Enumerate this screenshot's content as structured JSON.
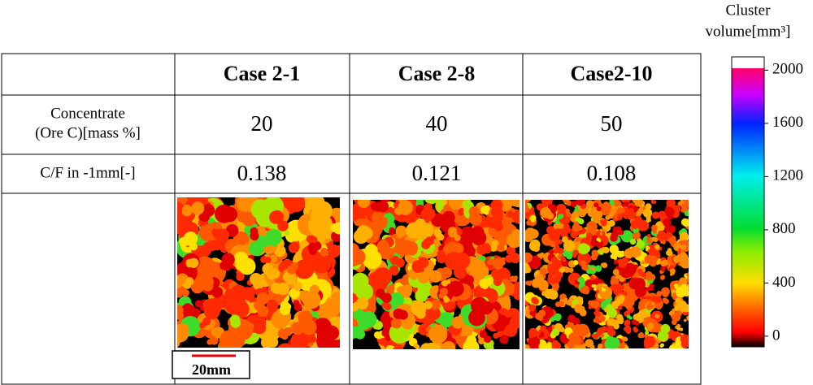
{
  "table": {
    "header": [
      "Case 2-1",
      "Case 2-8",
      "Case2-10"
    ],
    "rows": [
      {
        "label": [
          "Concentrate",
          "(Ore C)[mass %]"
        ],
        "values": [
          20,
          40,
          50
        ]
      },
      {
        "label": [
          "C/F in -1mm[-]"
        ],
        "values": [
          0.138,
          0.121,
          0.108
        ]
      }
    ]
  },
  "scale_bar": "20mm",
  "colorbar": {
    "title": [
      "Cluster",
      "volume[mm³]"
    ],
    "lim": [
      -80,
      2100
    ],
    "ticks": [
      0,
      400,
      800,
      1200,
      1600,
      2000
    ]
  }
}
